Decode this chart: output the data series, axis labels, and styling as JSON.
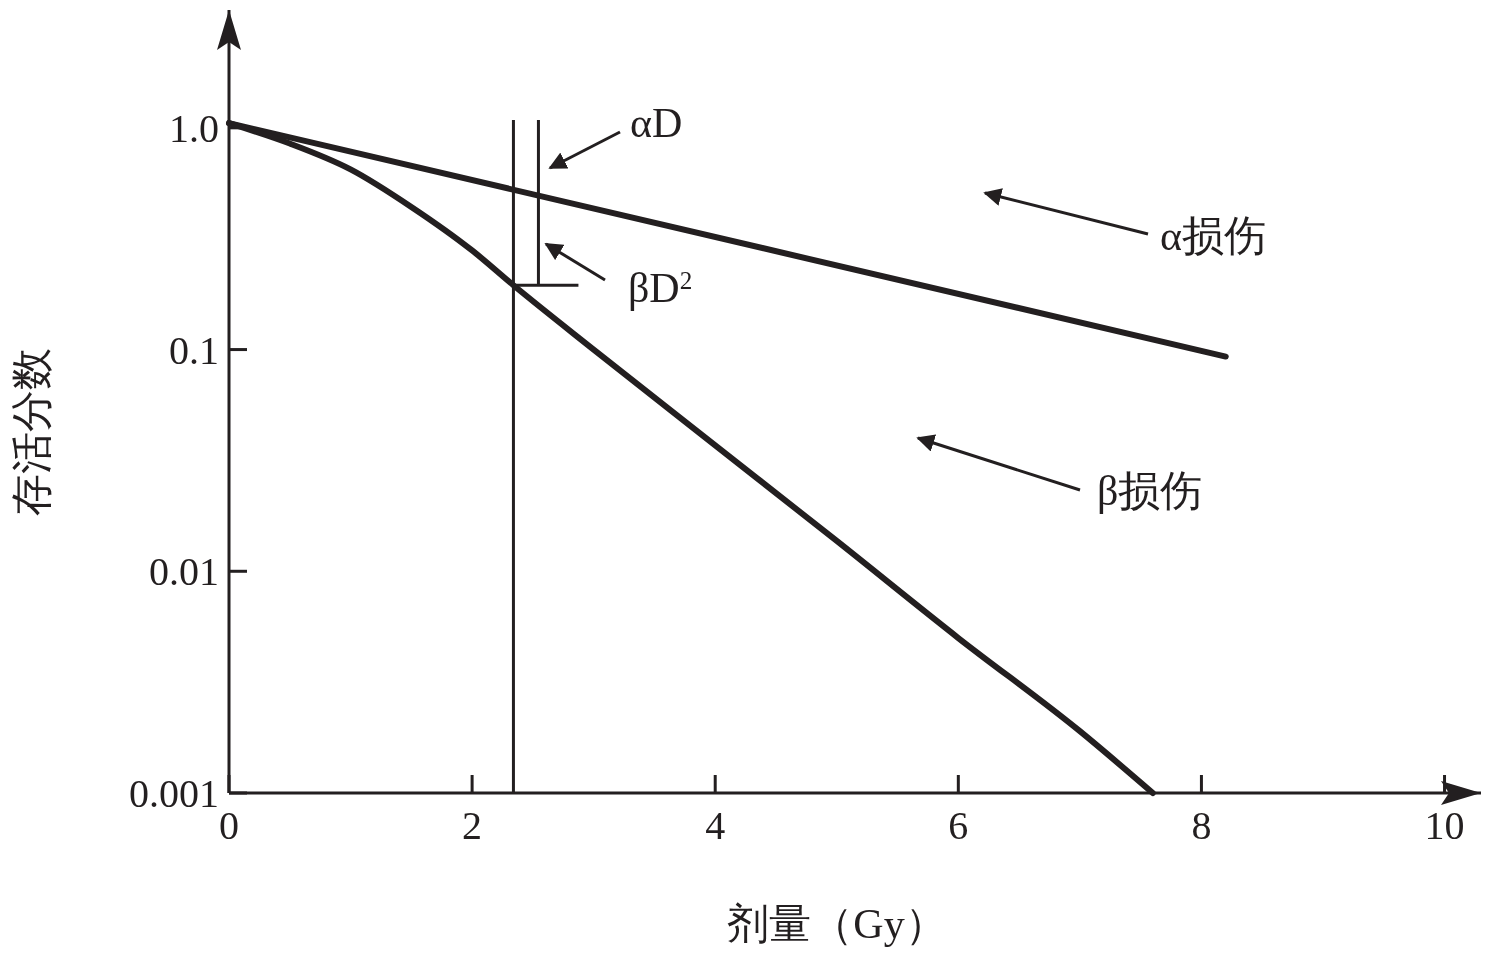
{
  "chart_data": {
    "type": "line",
    "xlabel": "剂量（Gy）",
    "ylabel": "存活分数",
    "log": "y",
    "xlim": [
      0,
      10.3
    ],
    "ylim": [
      0.001,
      3.4
    ],
    "xticks": [
      0,
      2,
      4,
      6,
      8,
      10
    ],
    "yticks": [
      0.001,
      0.01,
      0.1,
      {
        "value": 1,
        "label": "1.0"
      }
    ],
    "series": [
      {
        "color": "#231f20",
        "x": [
          0,
          8.2
        ],
        "values": [
          1.05,
          0.093
        ]
      },
      {
        "color": "#231f20",
        "x": [
          0,
          0.5,
          1,
          1.5,
          2,
          2.34,
          3,
          4,
          5,
          6,
          7,
          7.6
        ],
        "values": [
          1.05,
          0.85,
          0.65,
          0.44,
          0.28,
          0.195,
          0.1,
          0.037,
          0.0137,
          0.005,
          0.0019,
          0.001
        ]
      }
    ],
    "ref_lines": [
      {
        "axis": "x",
        "value": 2.34,
        "color": "#231f20"
      }
    ],
    "annotations": [
      "αD",
      {
        "text": "βD$^{2}$",
        "x": 2.34,
        "y": 0.195
      },
      "α损伤",
      "β损伤"
    ]
  }
}
